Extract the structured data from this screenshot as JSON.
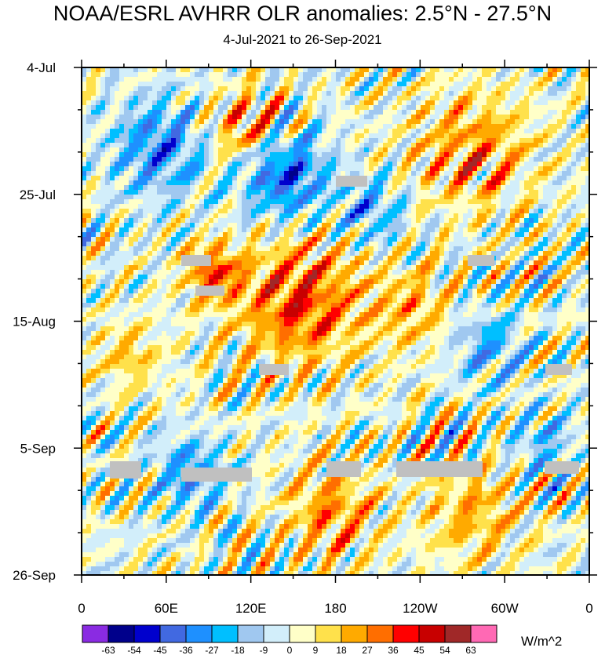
{
  "chart_data": {
    "type": "heatmap",
    "title": "NOAA/ESRL AVHRR OLR anomalies: 2.5°N - 27.5°N",
    "subtitle": "4-Jul-2021 to 26-Sep-2021",
    "x_ticks": [
      "0",
      "60E",
      "120E",
      "180",
      "120W",
      "60W",
      "0"
    ],
    "x_range": [
      0,
      360
    ],
    "y_ticks": [
      "4-Jul",
      "25-Jul",
      "15-Aug",
      "5-Sep",
      "26-Sep"
    ],
    "y_range_days": [
      0,
      84
    ],
    "colorbar": {
      "labels": [
        "-63",
        "-54",
        "-45",
        "-36",
        "-27",
        "-18",
        "-9",
        "0",
        "9",
        "18",
        "27",
        "36",
        "45",
        "54",
        "63"
      ],
      "colors": [
        "#8a2be2",
        "#00008b",
        "#0000cd",
        "#4169e1",
        "#1e90ff",
        "#00bfff",
        "#a0c8f0",
        "#d2eefa",
        "#ffffc8",
        "#ffe14b",
        "#ffaa00",
        "#ff6e00",
        "#ff0000",
        "#c80000",
        "#a02828",
        "#ff69b4"
      ],
      "units": "W/m^2"
    }
  }
}
